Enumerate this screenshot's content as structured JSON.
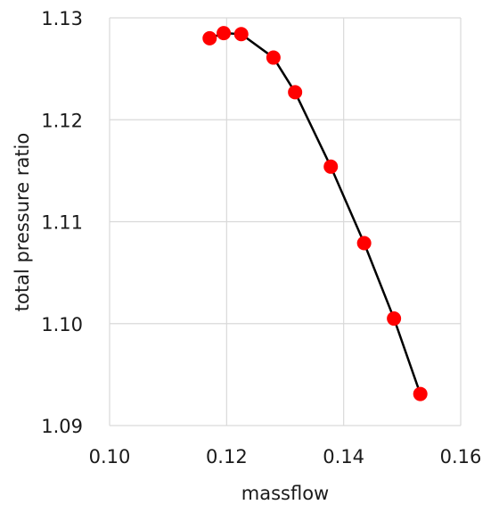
{
  "chart_data": {
    "type": "scatter",
    "title": "",
    "xlabel": "massflow",
    "ylabel": "total pressure ratio",
    "xlim": [
      0.1,
      0.16
    ],
    "ylim": [
      1.09,
      1.13
    ],
    "xticks": [
      "0.10",
      "0.12",
      "0.14",
      "0.16"
    ],
    "yticks": [
      "1.09",
      "1.10",
      "1.11",
      "1.12",
      "1.13"
    ],
    "grid": true,
    "legend": "none",
    "series": [
      {
        "line_color": "#000000",
        "marker_color": "#ff0000",
        "points": [
          {
            "x": 0.1171,
            "y": 1.128
          },
          {
            "x": 0.1195,
            "y": 1.1285
          },
          {
            "x": 0.1225,
            "y": 1.1284
          },
          {
            "x": 0.128,
            "y": 1.1261
          },
          {
            "x": 0.1317,
            "y": 1.1227
          },
          {
            "x": 0.1378,
            "y": 1.1154
          },
          {
            "x": 0.1435,
            "y": 1.1079
          },
          {
            "x": 0.1486,
            "y": 1.1005
          },
          {
            "x": 0.1531,
            "y": 1.0931
          }
        ]
      }
    ]
  }
}
